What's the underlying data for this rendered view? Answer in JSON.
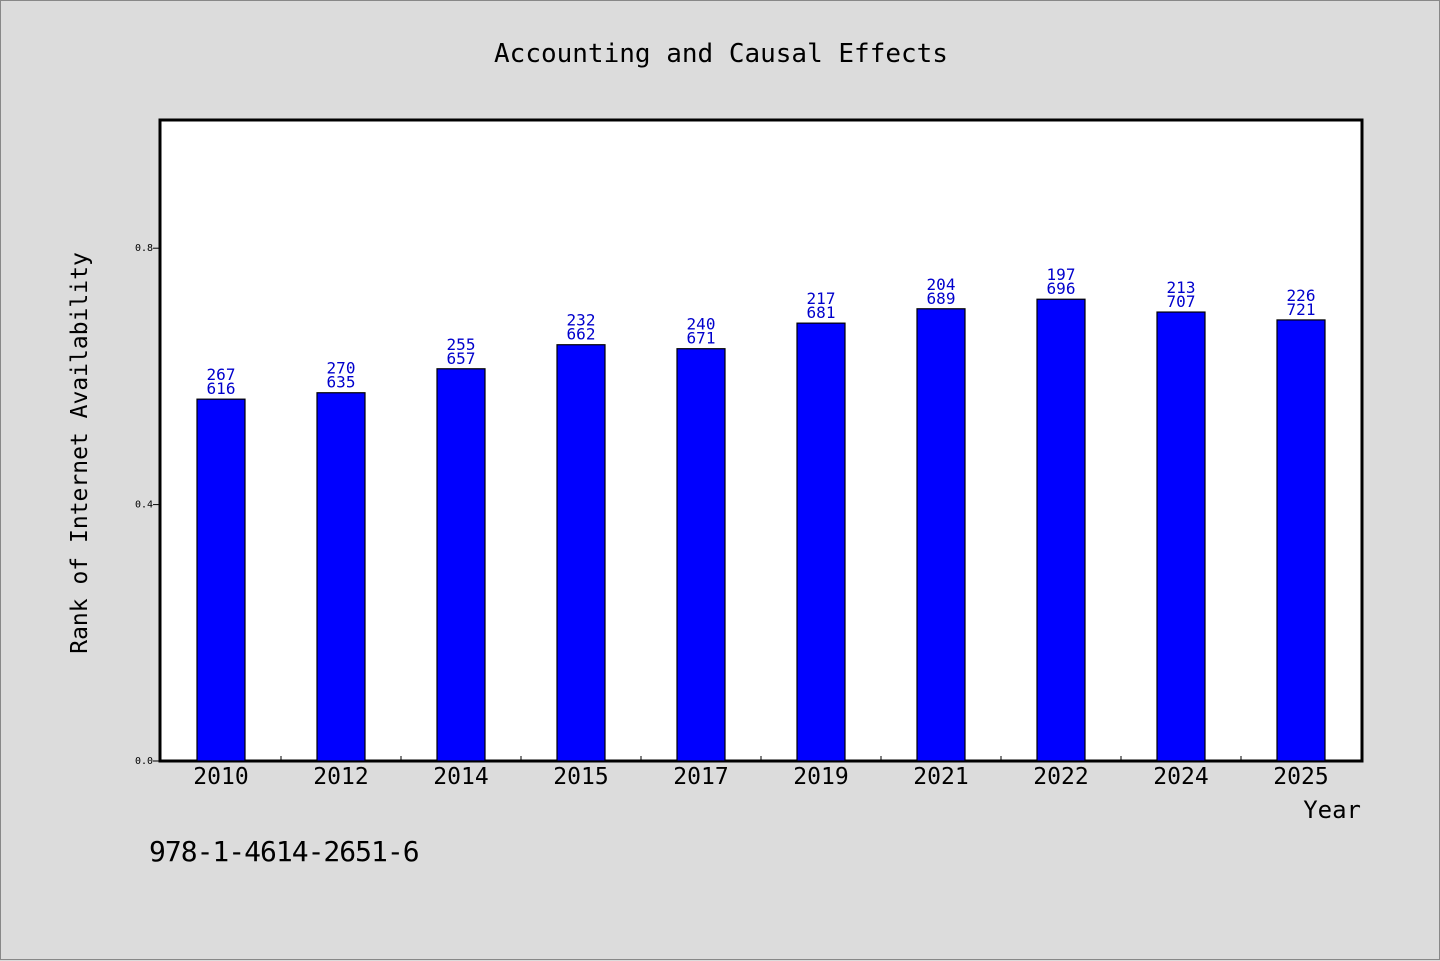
{
  "chart_data": {
    "type": "bar",
    "title": "Accounting and Causal Effects",
    "xlabel": "Year",
    "ylabel": "Rank of Internet Availability",
    "categories": [
      "2010",
      "2012",
      "2014",
      "2015",
      "2017",
      "2019",
      "2021",
      "2022",
      "2024",
      "2025"
    ],
    "values": [
      0.5645,
      0.5745,
      0.6119,
      0.6494,
      0.6432,
      0.6831,
      0.7055,
      0.7204,
      0.7004,
      0.6881
    ],
    "labels_top": [
      "267",
      "270",
      "255",
      "232",
      "240",
      "217",
      "204",
      "197",
      "213",
      "226"
    ],
    "labels_bottom": [
      "616",
      "635",
      "657",
      "662",
      "671",
      "681",
      "689",
      "696",
      "707",
      "721"
    ],
    "ylim": [
      0,
      1.0
    ],
    "yticks": [
      0.0,
      0.4,
      0.8
    ],
    "ytick_labels": [
      "0.0",
      "0.4",
      "0.8"
    ],
    "grid": false,
    "bar_color": "#0000ff",
    "label_color": "#0000cc"
  },
  "footer": {
    "code": "978-1-4614-2651-6"
  }
}
